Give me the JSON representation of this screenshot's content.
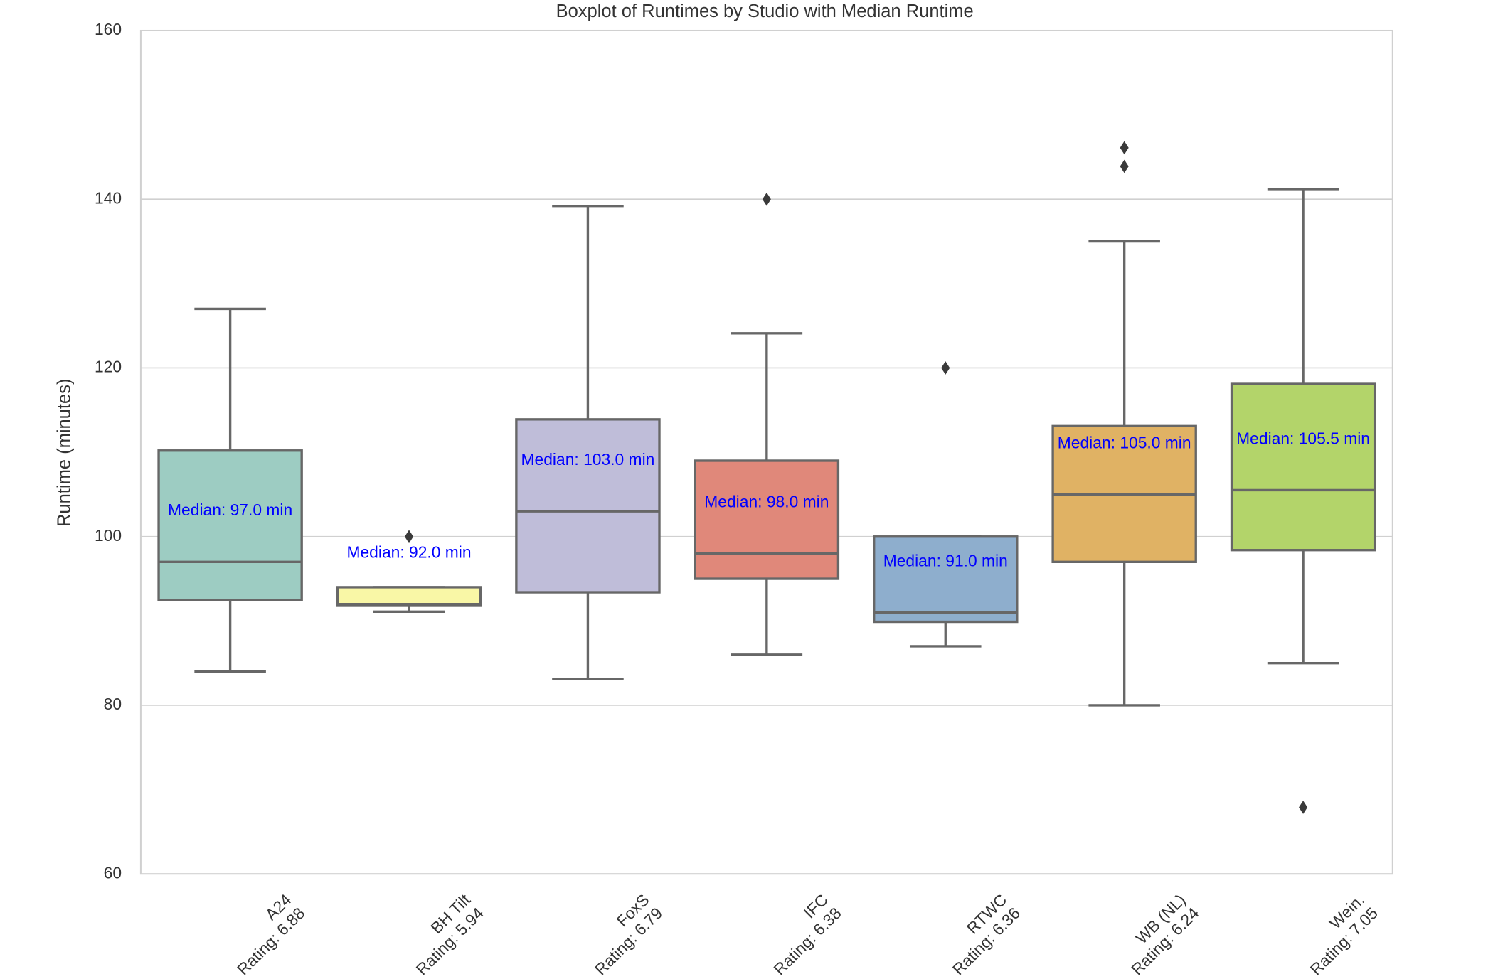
{
  "chart_data": {
    "type": "box",
    "title": "Boxplot of Runtimes by Studio with Median Runtime",
    "y_label": "Runtime (minutes)",
    "categories": [
      [
        "A24",
        "Rating: 6.88"
      ],
      [
        "BH Tilt",
        "Rating: 5.94"
      ],
      [
        "FoxS",
        "Rating: 6.79"
      ],
      [
        "IFC",
        "Rating: 6.38"
      ],
      [
        "RTWC",
        "Rating: 6.36"
      ],
      [
        "WB (NL)",
        "Rating: 6.24"
      ],
      [
        "Wein.",
        "Rating: 7.05"
      ]
    ],
    "colors": [
      "#9dccc2",
      "#f9f7a6",
      "#bfbdd9",
      "#e0887a",
      "#8eaecd",
      "#e0b264",
      "#b3d46a"
    ],
    "boxes": [
      {
        "low": 84,
        "q1": 92.5,
        "median": 97.0,
        "q3": 110.2,
        "high": 127,
        "outliers": [],
        "median_label": "Median: 97.0 min"
      },
      {
        "low": 91.1,
        "q1": 91.8,
        "median": 92.0,
        "q3": 94,
        "high": 94,
        "outliers": [
          100
        ],
        "median_label": "Median: 92.0 min"
      },
      {
        "low": 83.1,
        "q1": 93.4,
        "median": 103.0,
        "q3": 113.9,
        "high": 139.2,
        "outliers": [],
        "median_label": "Median: 103.0 min"
      },
      {
        "low": 86,
        "q1": 95,
        "median": 98.0,
        "q3": 109,
        "high": 124.1,
        "outliers": [
          140
        ],
        "median_label": "Median: 98.0 min"
      },
      {
        "low": 87,
        "q1": 89.9,
        "median": 91.0,
        "q3": 100,
        "high": 100,
        "outliers": [
          120
        ],
        "median_label": "Median: 91.0 min"
      },
      {
        "low": 80,
        "q1": 97,
        "median": 105.0,
        "q3": 113.1,
        "high": 135,
        "outliers": [
          143.9,
          146.1
        ],
        "median_label": "Median: 105.0 min"
      },
      {
        "low": 85,
        "q1": 98.4,
        "median": 105.5,
        "q3": 118.1,
        "high": 141.2,
        "outliers": [
          67.9
        ],
        "median_label": "Median: 105.5 min"
      }
    ],
    "ylim": [
      60,
      160
    ],
    "yticks": [
      60,
      80,
      100,
      120,
      140,
      160
    ],
    "grid": true
  }
}
